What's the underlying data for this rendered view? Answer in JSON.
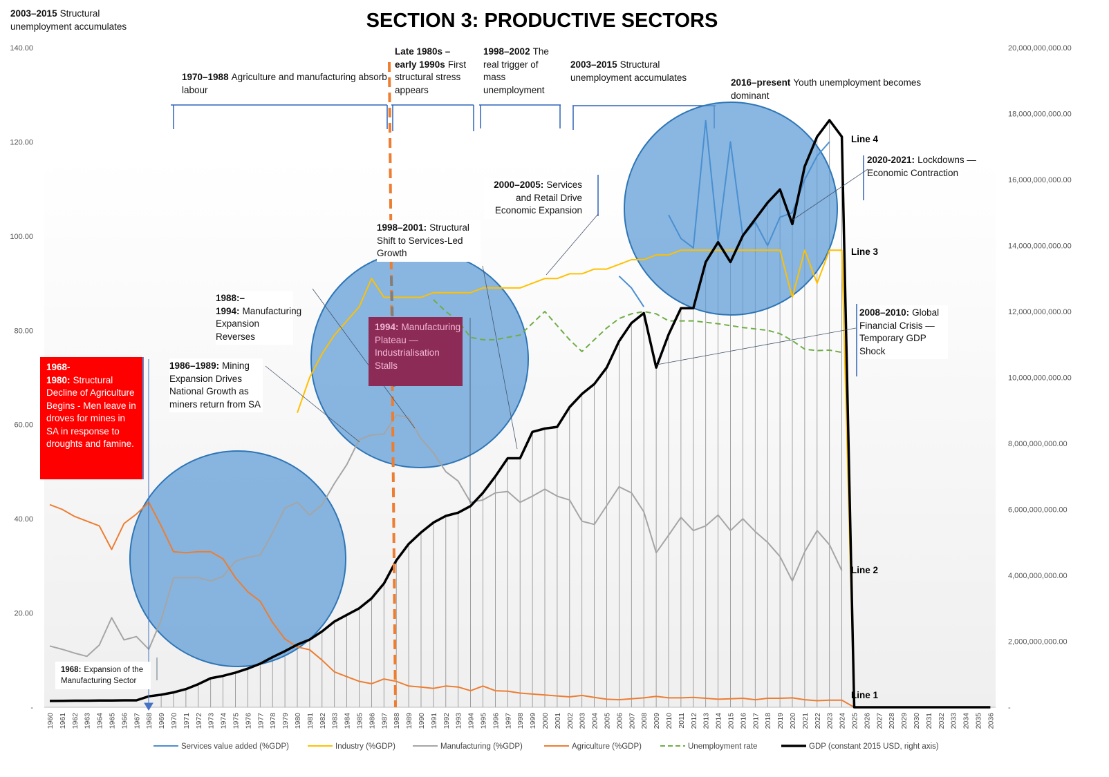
{
  "chart_data": {
    "type": "line",
    "title": "SECTION 3:  PRODUCTIVE SECTORS",
    "categories": [
      "1960",
      "1961",
      "1962",
      "1963",
      "1964",
      "1965",
      "1966",
      "1967",
      "1968",
      "1969",
      "1970",
      "1971",
      "1972",
      "1973",
      "1974",
      "1975",
      "1976",
      "1977",
      "1978",
      "1979",
      "1980",
      "1981",
      "1982",
      "1983",
      "1984",
      "1985",
      "1986",
      "1987",
      "1988",
      "1989",
      "1990",
      "1991",
      "1992",
      "1993",
      "1994",
      "1995",
      "1996",
      "1997",
      "1998",
      "1999",
      "2000",
      "2001",
      "2002",
      "2003",
      "2004",
      "2005",
      "2006",
      "2007",
      "2008",
      "2009",
      "2010",
      "2011",
      "2012",
      "2013",
      "2014",
      "2015",
      "2016",
      "2017",
      "2018",
      "2019",
      "2020",
      "2021",
      "2022",
      "2023",
      "2024",
      "2025",
      "2026",
      "2027",
      "2028",
      "2029",
      "2030",
      "2031",
      "2032",
      "2033",
      "2034",
      "2035",
      "2036"
    ],
    "ylim": [
      0,
      140
    ],
    "yticks": [
      {
        "value": 0,
        "label": "-"
      },
      {
        "value": 20,
        "label": "20.00"
      },
      {
        "value": 40,
        "label": "40.00"
      },
      {
        "value": 60,
        "label": "60.00"
      },
      {
        "value": 80,
        "label": "80.00"
      },
      {
        "value": 100,
        "label": "100.00"
      },
      {
        "value": 120,
        "label": "120.00"
      },
      {
        "value": 140,
        "label": "140.00"
      }
    ],
    "y2lim": [
      0,
      20000000000
    ],
    "y2ticks": [
      {
        "value": 0,
        "label": "-"
      },
      {
        "value": 2000000000,
        "label": "2,000,000,000.00"
      },
      {
        "value": 4000000000,
        "label": "4,000,000,000.00"
      },
      {
        "value": 6000000000,
        "label": "6,000,000,000.00"
      },
      {
        "value": 8000000000,
        "label": "8,000,000,000.00"
      },
      {
        "value": 10000000000,
        "label": "10,000,000,000.00"
      },
      {
        "value": 12000000000,
        "label": "12,000,000,000.00"
      },
      {
        "value": 14000000000,
        "label": "14,000,000,000.00"
      },
      {
        "value": 16000000000,
        "label": "16,000,000,000.00"
      },
      {
        "value": 18000000000,
        "label": "18,000,000,000.00"
      },
      {
        "value": 20000000000,
        "label": "20,000,000,000.00"
      }
    ],
    "legend": "bottom",
    "series": [
      {
        "name": "Services value added (%GDP)",
        "color": "#4a8fd0",
        "values": [
          null,
          null,
          null,
          null,
          null,
          null,
          null,
          null,
          null,
          null,
          null,
          null,
          null,
          null,
          null,
          null,
          null,
          null,
          null,
          null,
          null,
          null,
          null,
          null,
          null,
          null,
          null,
          null,
          null,
          null,
          null,
          null,
          null,
          null,
          null,
          null,
          null,
          null,
          null,
          null,
          null,
          null,
          null,
          null,
          null,
          null,
          91.5,
          89,
          85,
          null,
          104.5,
          99.5,
          97.5,
          124.5,
          99,
          120,
          100,
          103,
          98,
          104,
          105,
          112,
          117,
          120,
          null,
          null,
          null,
          null,
          null,
          null,
          null,
          null,
          null,
          null,
          null,
          null,
          null
        ]
      },
      {
        "name": "Industry (%GDP)",
        "color": "#ffc000",
        "values": [
          null,
          null,
          null,
          null,
          null,
          null,
          null,
          null,
          null,
          null,
          null,
          null,
          null,
          null,
          null,
          null,
          null,
          null,
          null,
          null,
          62.5,
          70,
          75,
          79,
          82,
          85,
          91,
          87,
          87,
          87,
          87,
          88,
          88,
          88,
          88,
          89,
          89,
          89,
          89,
          90,
          91,
          91,
          92,
          92,
          93,
          93,
          94,
          95,
          95,
          96,
          96,
          97,
          97,
          97,
          97,
          97,
          97,
          97,
          97,
          97,
          87,
          97,
          90,
          97,
          97,
          0,
          null,
          null,
          null,
          null,
          null,
          null,
          null,
          null,
          null,
          null,
          null
        ]
      },
      {
        "name": "Manufacturing (%GDP)",
        "color": "#a5a5a5",
        "values": [
          13,
          12.3,
          11.5,
          10.8,
          13.2,
          19,
          14.3,
          15,
          12.3,
          18.5,
          27.5,
          27.5,
          27.5,
          26.8,
          27.8,
          31,
          31.8,
          32.3,
          37,
          42.3,
          43.5,
          40.8,
          43,
          47.5,
          51.5,
          56.8,
          57.8,
          58,
          62,
          61.5,
          57,
          54,
          50,
          48,
          43.5,
          44,
          45.5,
          45.8,
          43.5,
          44.8,
          46.3,
          44.8,
          44,
          39.5,
          38.8,
          42.8,
          46.8,
          45.5,
          41.5,
          32.8,
          36.5,
          40.3,
          37.5,
          38.5,
          40.8,
          37.5,
          40,
          37.3,
          35,
          32,
          26.8,
          33,
          37.5,
          34.5,
          29,
          null,
          null,
          null,
          null,
          null,
          null,
          null,
          null,
          null,
          null,
          null,
          null
        ]
      },
      {
        "name": "Agriculture (%GDP)",
        "color": "#ed7d31",
        "values": [
          43,
          42,
          40.5,
          39.5,
          38.5,
          33.5,
          39,
          41,
          43.5,
          38.5,
          33,
          32.8,
          33,
          33,
          31.5,
          27.5,
          24.5,
          22.5,
          18,
          14.5,
          12.8,
          12.2,
          10,
          7.5,
          6.5,
          5.5,
          5,
          6,
          5.5,
          4.5,
          4.3,
          4,
          4.5,
          4.3,
          3.5,
          4.5,
          3.5,
          3.4,
          3,
          2.8,
          2.6,
          2.4,
          2.2,
          2.5,
          2.1,
          1.7,
          1.6,
          1.8,
          2,
          2.3,
          2,
          2,
          2.1,
          1.9,
          1.7,
          1.8,
          1.9,
          1.6,
          1.9,
          1.9,
          2,
          1.6,
          1.4,
          1.5,
          1.5,
          0,
          null,
          null,
          null,
          null,
          null,
          null,
          null,
          null,
          null,
          null,
          null
        ]
      },
      {
        "name": "Unemployment rate",
        "color": "#70ad47",
        "dashed": true,
        "values": [
          null,
          null,
          null,
          null,
          null,
          null,
          null,
          null,
          null,
          null,
          null,
          null,
          null,
          null,
          null,
          null,
          null,
          null,
          null,
          null,
          null,
          null,
          null,
          null,
          null,
          null,
          null,
          null,
          null,
          null,
          null,
          86.5,
          84,
          82,
          78.5,
          78,
          78,
          78.5,
          79,
          81.5,
          84,
          81,
          78,
          75.5,
          78,
          80.5,
          82.5,
          83.5,
          84,
          83.5,
          82,
          82,
          82,
          81.7,
          81.4,
          81,
          80.6,
          80.3,
          80,
          79.3,
          77.8,
          76,
          75.7,
          75.8,
          75.3,
          null,
          null,
          null,
          null,
          null,
          null,
          null,
          null,
          null,
          null,
          null,
          null
        ]
      },
      {
        "name": "GDP (constant 2015 USD, right axis)",
        "color": "#000000",
        "axis": "y2",
        "values": [
          190000000,
          195000000,
          200000000,
          200000000,
          205000000,
          205000000,
          210000000,
          210000000,
          330000000,
          380000000,
          450000000,
          550000000,
          700000000,
          880000000,
          950000000,
          1050000000,
          1170000000,
          1320000000,
          1520000000,
          1700000000,
          1900000000,
          2050000000,
          2300000000,
          2600000000,
          2800000000,
          3000000000,
          3300000000,
          3750000000,
          4450000000,
          4950000000,
          5300000000,
          5600000000,
          5800000000,
          5900000000,
          6100000000,
          6500000000,
          7000000000,
          7550000000,
          7550000000,
          8350000000,
          8450000000,
          8500000000,
          9100000000,
          9500000000,
          9800000000,
          10300000000,
          11100000000,
          11650000000,
          11950000000,
          10300000000,
          11300000000,
          12100000000,
          12100000000,
          13500000000,
          14100000000,
          13500000000,
          14300000000,
          14800000000,
          15300000000,
          15700000000,
          14650000000,
          16400000000,
          17300000000,
          17800000000,
          17300000000,
          0,
          0,
          0,
          0,
          0,
          0,
          0,
          0,
          0,
          0,
          0,
          0
        ]
      }
    ],
    "annotations": [
      {
        "heading": "2003–2015",
        "text": "Structural unemployment accumulates"
      },
      {
        "heading": "1970–1988",
        "text": "Agriculture and manufacturing absorb labour"
      },
      {
        "heading": "Late 1980s – early 1990s",
        "text": "First structural stress appears"
      },
      {
        "heading": "1998–2002",
        "text": "The real trigger of mass unemployment"
      },
      {
        "heading": "2003–2015",
        "text": "Structural unemployment accumulates"
      },
      {
        "heading": "2016–present",
        "text": "Youth unemployment becomes dominant"
      },
      {
        "heading": "2020-2021:",
        "text": "Lockdowns — Economic Contraction"
      },
      {
        "heading": "2000–2005:",
        "text": "Services and Retail Drive Economic Expansion"
      },
      {
        "heading": "1998–2001:",
        "text": "Structural Shift to Services-Led Growth"
      },
      {
        "heading": "1988:–1994:",
        "text": "Manufacturing Expansion Reverses"
      },
      {
        "heading": "1994:",
        "text": "Manufacturing Plateau — Industrialisation Stalls"
      },
      {
        "heading": "1986–1989:",
        "text": "Mining Expansion Drives National Growth as miners return from SA"
      },
      {
        "heading": "1968-1980:",
        "text": "Structural Decline of Agriculture Begins - Men leave in droves for mines in SA in response to droughts and famine."
      },
      {
        "heading": "1968:",
        "text": "Expansion of the Manufacturing Sector"
      },
      {
        "heading": "2008–2010:",
        "text": "Global Financial Crisis — Temporary GDP Shock"
      }
    ],
    "line_labels": [
      "Line 4",
      "Line 3",
      "Line 2",
      "Line 1"
    ]
  }
}
